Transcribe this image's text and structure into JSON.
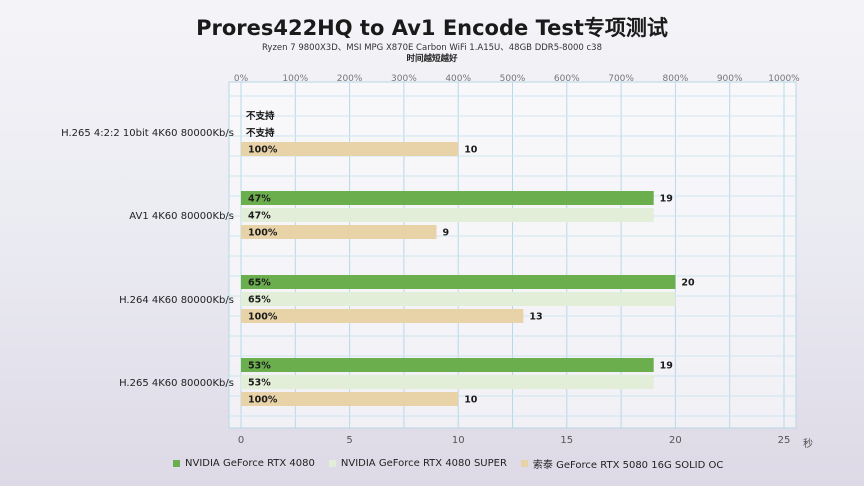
{
  "chart_data": {
    "type": "bar",
    "title": "Prores422HQ to Av1 Encode Test专项测试",
    "subtitle": "Ryzen 7 9800X3D、MSI MPG X870E Carbon WiFi 1.A15U、48GB DDR5-8000 c38",
    "note": "时间越短越好",
    "x_unit": "秒",
    "xlim": [
      0,
      25
    ],
    "x_ticks": [
      0,
      5,
      10,
      15,
      20,
      25
    ],
    "top_ticks": [
      "0%",
      "100%",
      "200%",
      "300%",
      "400%",
      "500%",
      "600%",
      "700%",
      "800%",
      "900%",
      "1000%"
    ],
    "categories": [
      "H.265 4:2:2 10bit 4K60 80000Kb/s",
      "AV1 4K60 80000Kb/s",
      "H.264 4K60 80000Kb/s",
      "H.265 4K60 80000Kb/s"
    ],
    "series": [
      {
        "name": "NVIDIA GeForce RTX 4080",
        "color": "#6aae4e",
        "values": [
          null,
          19,
          20,
          19
        ],
        "labels": [
          "不支持",
          "47%",
          "65%",
          "53%"
        ]
      },
      {
        "name": "NVIDIA GeForce RTX 4080 SUPER",
        "color": "#e3eed9",
        "values": [
          null,
          19,
          20,
          19
        ],
        "labels": [
          "不支持",
          "47%",
          "65%",
          "53%"
        ]
      },
      {
        "name": "索泰 GeForce RTX 5080 16G SOLID OC",
        "color": "#e8d2a8",
        "values": [
          10,
          9,
          13,
          10
        ],
        "labels": [
          "100%",
          "100%",
          "100%",
          "100%"
        ]
      }
    ],
    "grid": true,
    "legend_position": "bottom"
  }
}
